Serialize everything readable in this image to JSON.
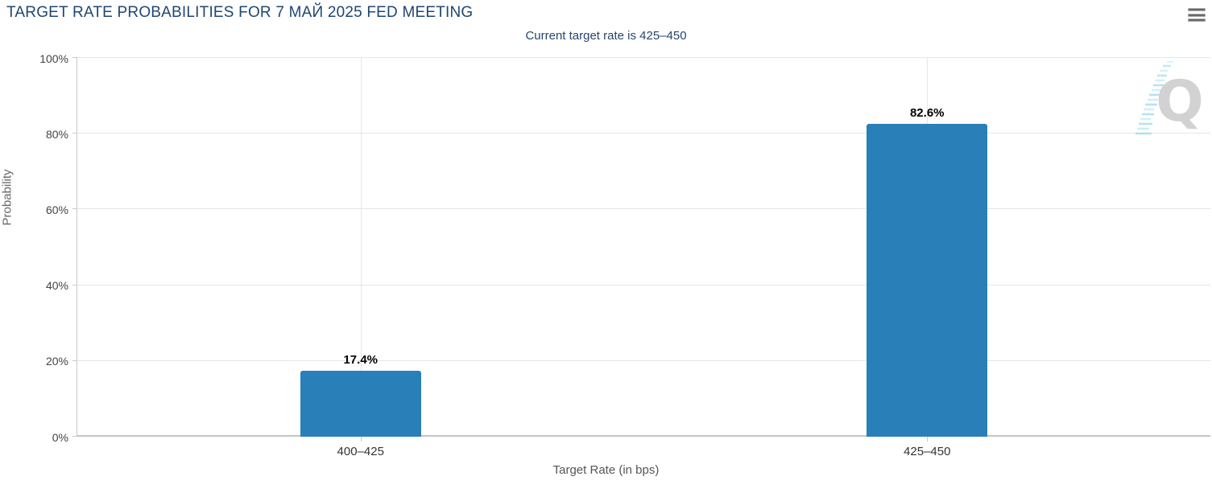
{
  "header": {
    "title": "TARGET RATE PROBABILITIES FOR 7 МАЙ 2025 FED MEETING",
    "subtitle": "Current target rate is 425–450",
    "menu_icon": "hamburger-menu-icon"
  },
  "watermark": {
    "letter": "Q"
  },
  "colors": {
    "bar": "#2980b9",
    "title": "#1f4672",
    "subtitle": "#26466b",
    "gridline": "#e6e6e6",
    "axis_line": "#c9c9c9",
    "watermark_gray": "#d2d2d2",
    "watermark_blue": "#9fd8f0"
  },
  "chart_data": {
    "type": "bar",
    "title": "TARGET RATE PROBABILITIES FOR 7 МАЙ 2025 FED MEETING",
    "subtitle": "Current target rate is 425–450",
    "categories": [
      "400–425",
      "425–450"
    ],
    "values": [
      17.4,
      82.6
    ],
    "value_labels": [
      "17.4%",
      "82.6%"
    ],
    "xlabel": "Target Rate (in bps)",
    "ylabel": "Probability",
    "ylim": [
      0,
      100
    ],
    "yticks": [
      0,
      20,
      40,
      60,
      80,
      100
    ],
    "ytick_labels": [
      "0%",
      "20%",
      "40%",
      "60%",
      "80%",
      "100%"
    ],
    "grid": true,
    "legend": "none",
    "bar_color": "#2980b9"
  }
}
